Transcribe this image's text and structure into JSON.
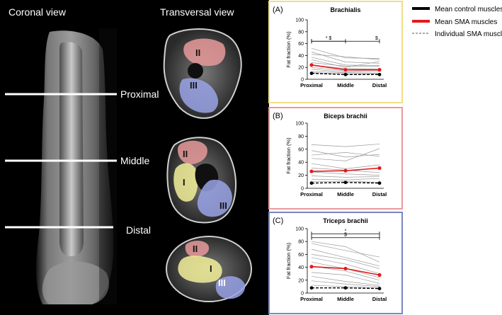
{
  "mri": {
    "coronal_title": "Coronal view",
    "transversal_title": "Transversal view",
    "levels": [
      "Proximal",
      "Middle",
      "Distal"
    ],
    "muscle_labels": {
      "brachialis": "I",
      "biceps": "II",
      "triceps": "III"
    }
  },
  "legend": {
    "items": [
      {
        "label": "Mean control muscles",
        "color": "#000000",
        "style": "thick"
      },
      {
        "label": "Mean SMA muscles",
        "color": "#e31a1c",
        "style": "thick"
      },
      {
        "label": "Individual SMA muscles",
        "color": "#555555",
        "style": "dashed"
      }
    ]
  },
  "colors": {
    "panel_a_border": "#f2dd85",
    "panel_b_border": "#e89a9a",
    "panel_c_border": "#7b86c2",
    "brachialis_overlay": "#f2f09a",
    "biceps_overlay": "#e89a9a",
    "triceps_overlay": "#9aa3e6"
  },
  "chart_data": [
    {
      "type": "line",
      "panel": "(A)",
      "title": "Brachialis",
      "xlabel": "",
      "ylabel": "Fat fraction (%)",
      "categories": [
        "Proximal",
        "Middle",
        "Distal"
      ],
      "ylim": [
        0,
        100
      ],
      "yticks": [
        0,
        20,
        40,
        60,
        80,
        100
      ],
      "significance": [
        {
          "from": "Proximal",
          "to": "Middle",
          "label": "* $",
          "level": 64
        },
        {
          "from": "Proximal",
          "to": "Distal",
          "label": "$",
          "level": 64
        }
      ],
      "series": [
        {
          "name": "Mean SMA muscles",
          "values": [
            24,
            16,
            16
          ]
        },
        {
          "name": "Mean control muscles",
          "values": [
            10,
            8,
            8
          ]
        },
        {
          "name": "Individual SMA muscles",
          "values": [
            [
              52,
              36,
              35
            ],
            [
              46,
              29,
              27
            ],
            [
              42,
              38,
              33
            ],
            [
              37,
              24,
              23
            ],
            [
              33,
              20,
              30
            ],
            [
              28,
              22,
              22
            ],
            [
              24,
              18,
              17
            ],
            [
              20,
              14,
              15
            ],
            [
              17,
              12,
              13
            ],
            [
              13,
              11,
              10
            ],
            [
              11,
              9,
              9
            ]
          ]
        }
      ]
    },
    {
      "type": "line",
      "panel": "(B)",
      "title": "Biceps brachii",
      "xlabel": "",
      "ylabel": "Fat fraction (%)",
      "categories": [
        "Proximal",
        "Middle",
        "Distal"
      ],
      "ylim": [
        0,
        100
      ],
      "yticks": [
        0,
        20,
        40,
        60,
        80,
        100
      ],
      "significance": [],
      "series": [
        {
          "name": "Mean SMA muscles",
          "values": [
            26,
            27,
            31
          ]
        },
        {
          "name": "Mean control muscles",
          "values": [
            8,
            9,
            8
          ]
        },
        {
          "name": "Individual SMA muscles",
          "values": [
            [
              67,
              64,
              68
            ],
            [
              58,
              48,
              52
            ],
            [
              51,
              55,
              49
            ],
            [
              46,
              42,
              61
            ],
            [
              38,
              30,
              36
            ],
            [
              31,
              28,
              24
            ],
            [
              25,
              22,
              20
            ],
            [
              19,
              17,
              18
            ],
            [
              14,
              13,
              15
            ],
            [
              10,
              11,
              9
            ]
          ]
        }
      ]
    },
    {
      "type": "line",
      "panel": "(C)",
      "title": "Triceps brachii",
      "xlabel": "",
      "ylabel": "Fat fraction (%)",
      "categories": [
        "Proximal",
        "Middle",
        "Distal"
      ],
      "ylim": [
        0,
        100
      ],
      "yticks": [
        0,
        20,
        40,
        60,
        80,
        100
      ],
      "significance": [
        {
          "from": "Proximal",
          "to": "Distal",
          "label": "*",
          "level": 92
        },
        {
          "from": "Proximal",
          "to": "Distal",
          "label": "$",
          "level": 86
        }
      ],
      "series": [
        {
          "name": "Mean SMA muscles",
          "values": [
            41,
            38,
            28
          ]
        },
        {
          "name": "Mean control muscles",
          "values": [
            8,
            8,
            7
          ]
        },
        {
          "name": "Individual SMA muscles",
          "values": [
            [
              80,
              72,
              48
            ],
            [
              77,
              66,
              56
            ],
            [
              68,
              55,
              42
            ],
            [
              60,
              52,
              38
            ],
            [
              55,
              45,
              30
            ],
            [
              48,
              38,
              24
            ],
            [
              42,
              34,
              20
            ],
            [
              32,
              28,
              15
            ],
            [
              26,
              18,
              12
            ],
            [
              19,
              14,
              10
            ],
            [
              12,
              10,
              8
            ]
          ]
        }
      ]
    }
  ]
}
